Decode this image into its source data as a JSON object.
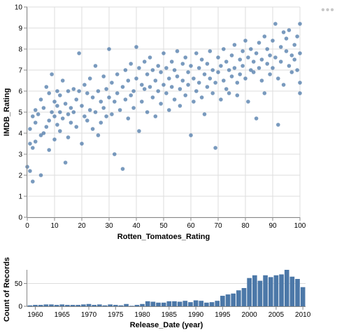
{
  "actions_menu": {
    "icon": "ellipsis-icon",
    "label": "•••"
  },
  "chart_data": [
    {
      "type": "scatter",
      "title": "",
      "xlabel": "Rotten_Tomatoes_Rating",
      "ylabel": "IMDB_Rating",
      "xlim": [
        0,
        100
      ],
      "ylim": [
        0,
        10
      ],
      "x_ticks": [
        0,
        10,
        20,
        30,
        40,
        50,
        60,
        70,
        80,
        90,
        100
      ],
      "y_ticks": [
        0,
        1,
        2,
        3,
        4,
        5,
        6,
        7,
        8,
        9,
        10
      ],
      "grid": true,
      "point_color": "#4c78a8",
      "points": [
        [
          0,
          2.4
        ],
        [
          1,
          3.5
        ],
        [
          1,
          4.2
        ],
        [
          1,
          2.2
        ],
        [
          2,
          1.7
        ],
        [
          2,
          3.3
        ],
        [
          2,
          4.8
        ],
        [
          3,
          3.6
        ],
        [
          3,
          5.1
        ],
        [
          3,
          4.5
        ],
        [
          4,
          4.9
        ],
        [
          5,
          5.6
        ],
        [
          5,
          3.9
        ],
        [
          5,
          2.0
        ],
        [
          6,
          4.0
        ],
        [
          6,
          5.2
        ],
        [
          7,
          4.3
        ],
        [
          7,
          6.2
        ],
        [
          8,
          5.9
        ],
        [
          8,
          4.6
        ],
        [
          8,
          3.2
        ],
        [
          9,
          5.0
        ],
        [
          9,
          6.8
        ],
        [
          10,
          4.8
        ],
        [
          10,
          3.7
        ],
        [
          10,
          5.5
        ],
        [
          11,
          5.3
        ],
        [
          11,
          6.0
        ],
        [
          11,
          4.4
        ],
        [
          12,
          5.0
        ],
        [
          12,
          4.1
        ],
        [
          12,
          5.8
        ],
        [
          13,
          4.7
        ],
        [
          13,
          6.5
        ],
        [
          14,
          2.6
        ],
        [
          14,
          5.4
        ],
        [
          15,
          4.9
        ],
        [
          15,
          6.0
        ],
        [
          15,
          3.8
        ],
        [
          16,
          5.2
        ],
        [
          16,
          4.5
        ],
        [
          17,
          6.1
        ],
        [
          17,
          5.0
        ],
        [
          18,
          4.3
        ],
        [
          18,
          5.6
        ],
        [
          19,
          7.8
        ],
        [
          19,
          6.0
        ],
        [
          20,
          3.5
        ],
        [
          20,
          5.3
        ],
        [
          21,
          4.8
        ],
        [
          21,
          6.3
        ],
        [
          22,
          5.9
        ],
        [
          22,
          4.6
        ],
        [
          23,
          5.1
        ],
        [
          23,
          6.6
        ],
        [
          24,
          4.2
        ],
        [
          24,
          5.7
        ],
        [
          25,
          7.2
        ],
        [
          25,
          5.0
        ],
        [
          26,
          3.9
        ],
        [
          26,
          6.0
        ],
        [
          27,
          4.5
        ],
        [
          27,
          5.5
        ],
        [
          28,
          6.7
        ],
        [
          28,
          5.2
        ],
        [
          29,
          4.8
        ],
        [
          29,
          6.1
        ],
        [
          30,
          8.0
        ],
        [
          30,
          5.7
        ],
        [
          31,
          4.9
        ],
        [
          31,
          6.4
        ],
        [
          32,
          5.5
        ],
        [
          32,
          3.0
        ],
        [
          33,
          6.8
        ],
        [
          33,
          5.9
        ],
        [
          34,
          5.1
        ],
        [
          35,
          2.3
        ],
        [
          35,
          6.2
        ],
        [
          36,
          5.6
        ],
        [
          36,
          7.0
        ],
        [
          37,
          4.7
        ],
        [
          37,
          6.5
        ],
        [
          38,
          5.8
        ],
        [
          38,
          7.3
        ],
        [
          39,
          6.0
        ],
        [
          39,
          5.2
        ],
        [
          40,
          8.1
        ],
        [
          40,
          6.6
        ],
        [
          41,
          4.1
        ],
        [
          41,
          7.1
        ],
        [
          42,
          6.3
        ],
        [
          42,
          5.5
        ],
        [
          43,
          7.4
        ],
        [
          43,
          6.1
        ],
        [
          44,
          5.0
        ],
        [
          44,
          6.8
        ],
        [
          45,
          7.6
        ],
        [
          45,
          6.2
        ],
        [
          46,
          5.7
        ],
        [
          46,
          7.0
        ],
        [
          47,
          6.5
        ],
        [
          47,
          4.8
        ],
        [
          48,
          7.2
        ],
        [
          48,
          6.0
        ],
        [
          49,
          5.4
        ],
        [
          49,
          6.9
        ],
        [
          50,
          7.8
        ],
        [
          50,
          6.3
        ],
        [
          51,
          5.9
        ],
        [
          51,
          7.1
        ],
        [
          52,
          6.6
        ],
        [
          52,
          5.1
        ],
        [
          53,
          7.4
        ],
        [
          53,
          6.2
        ],
        [
          54,
          5.6
        ],
        [
          54,
          7.0
        ],
        [
          55,
          6.7
        ],
        [
          55,
          7.9
        ],
        [
          56,
          6.1
        ],
        [
          56,
          5.3
        ],
        [
          57,
          7.3
        ],
        [
          57,
          6.5
        ],
        [
          58,
          5.8
        ],
        [
          58,
          7.6
        ],
        [
          59,
          6.9
        ],
        [
          59,
          6.3
        ],
        [
          60,
          3.9
        ],
        [
          60,
          7.2
        ],
        [
          61,
          6.6
        ],
        [
          61,
          5.5
        ],
        [
          62,
          7.8
        ],
        [
          62,
          6.0
        ],
        [
          63,
          7.1
        ],
        [
          63,
          6.4
        ],
        [
          64,
          5.7
        ],
        [
          64,
          7.5
        ],
        [
          65,
          6.8
        ],
        [
          65,
          4.9
        ],
        [
          66,
          7.3
        ],
        [
          66,
          6.2
        ],
        [
          67,
          7.9
        ],
        [
          67,
          6.6
        ],
        [
          68,
          5.9
        ],
        [
          68,
          7.0
        ],
        [
          69,
          3.3
        ],
        [
          69,
          6.4
        ],
        [
          70,
          7.6
        ],
        [
          70,
          6.9
        ],
        [
          71,
          5.6
        ],
        [
          71,
          7.2
        ],
        [
          72,
          6.5
        ],
        [
          72,
          8.0
        ],
        [
          73,
          7.4
        ],
        [
          73,
          6.1
        ],
        [
          74,
          7.0
        ],
        [
          74,
          5.9
        ],
        [
          75,
          7.7
        ],
        [
          75,
          6.7
        ],
        [
          76,
          8.2
        ],
        [
          76,
          7.1
        ],
        [
          77,
          6.4
        ],
        [
          77,
          5.8
        ],
        [
          78,
          7.5
        ],
        [
          78,
          6.8
        ],
        [
          79,
          7.9
        ],
        [
          79,
          7.2
        ],
        [
          80,
          6.6
        ],
        [
          80,
          8.4
        ],
        [
          81,
          7.6
        ],
        [
          81,
          5.5
        ],
        [
          82,
          7.0
        ],
        [
          82,
          8.0
        ],
        [
          83,
          6.9
        ],
        [
          83,
          7.4
        ],
        [
          84,
          4.7
        ],
        [
          84,
          7.8
        ],
        [
          85,
          7.1
        ],
        [
          85,
          8.3
        ],
        [
          86,
          6.5
        ],
        [
          86,
          7.5
        ],
        [
          87,
          8.6
        ],
        [
          87,
          5.9
        ],
        [
          88,
          7.3
        ],
        [
          88,
          8.0
        ],
        [
          89,
          6.8
        ],
        [
          89,
          7.7
        ],
        [
          90,
          8.4
        ],
        [
          90,
          7.1
        ],
        [
          91,
          9.2
        ],
        [
          91,
          7.6
        ],
        [
          92,
          6.6
        ],
        [
          92,
          4.4
        ],
        [
          93,
          8.1
        ],
        [
          93,
          7.4
        ],
        [
          94,
          8.8
        ],
        [
          94,
          6.3
        ],
        [
          95,
          7.9
        ],
        [
          95,
          8.5
        ],
        [
          96,
          7.2
        ],
        [
          96,
          8.9
        ],
        [
          97,
          7.7
        ],
        [
          97,
          6.9
        ],
        [
          98,
          8.2
        ],
        [
          98,
          7.5
        ],
        [
          99,
          8.6
        ],
        [
          99,
          7.0
        ],
        [
          100,
          9.2
        ],
        [
          100,
          6.4
        ],
        [
          100,
          7.8
        ],
        [
          100,
          5.9
        ]
      ]
    },
    {
      "type": "bar",
      "title": "",
      "xlabel": "Release_Date (year)",
      "ylabel": "Count of Records",
      "ylim": [
        0,
        80
      ],
      "y_ticks": [
        0,
        50
      ],
      "x_tick_labels": [
        "1960",
        "1965",
        "1970",
        "1975",
        "1980",
        "1985",
        "1990",
        "1995",
        "2000",
        "2005",
        "2010"
      ],
      "grid": true,
      "bar_color": "#4c78a8",
      "categories": [
        1959,
        1960,
        1961,
        1962,
        1963,
        1964,
        1965,
        1966,
        1967,
        1968,
        1969,
        1970,
        1971,
        1972,
        1973,
        1974,
        1975,
        1976,
        1977,
        1978,
        1979,
        1980,
        1981,
        1982,
        1983,
        1984,
        1985,
        1986,
        1987,
        1988,
        1989,
        1990,
        1991,
        1992,
        1993,
        1994,
        1995,
        1996,
        1997,
        1998,
        1999,
        2000,
        2001,
        2002,
        2003,
        2004,
        2005,
        2006,
        2007,
        2008,
        2009,
        2010
      ],
      "values": [
        2,
        3,
        3,
        4,
        4,
        3,
        4,
        3,
        3,
        3,
        4,
        5,
        3,
        4,
        2,
        4,
        3,
        2,
        5,
        1,
        3,
        5,
        11,
        10,
        8,
        8,
        11,
        11,
        10,
        12,
        9,
        13,
        12,
        8,
        9,
        12,
        23,
        26,
        28,
        35,
        40,
        62,
        68,
        56,
        68,
        64,
        68,
        70,
        80,
        65,
        60,
        42
      ]
    }
  ]
}
